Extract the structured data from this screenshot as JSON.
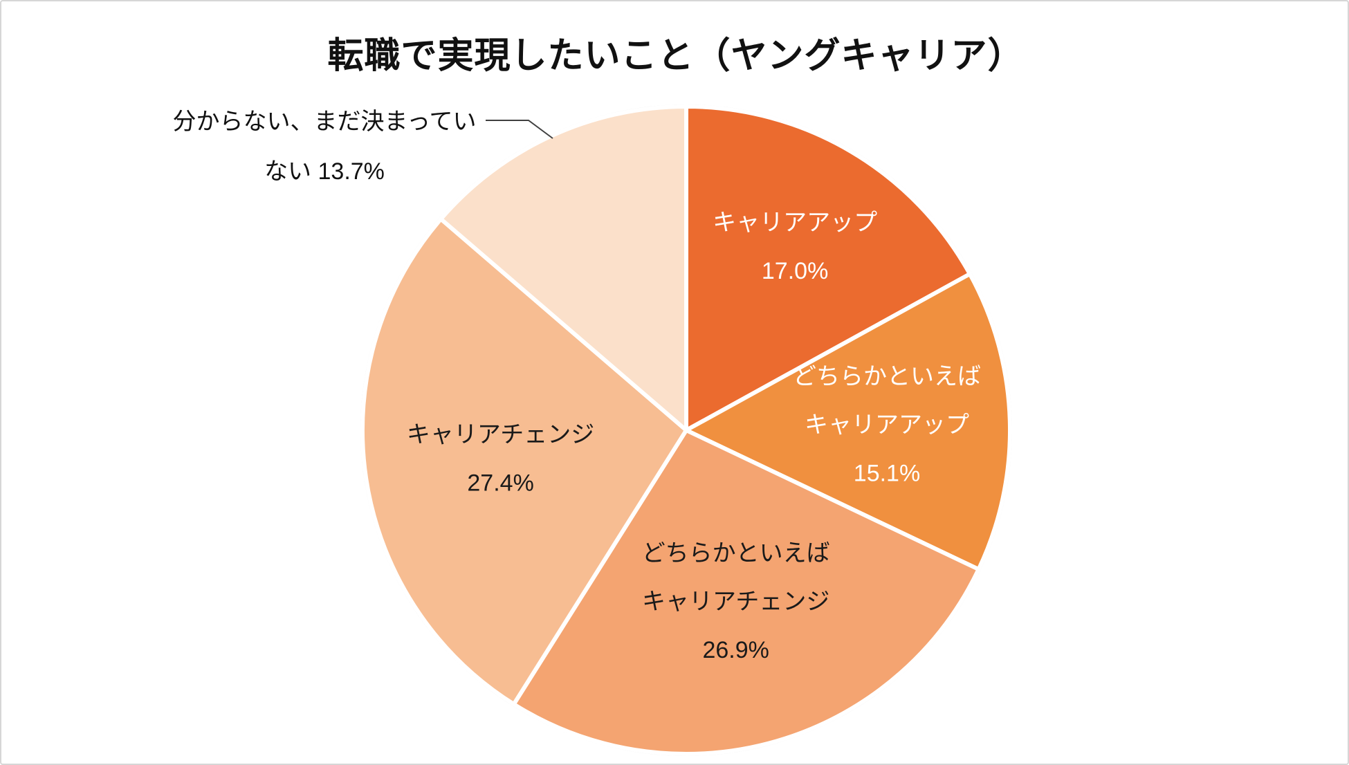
{
  "chart": {
    "title": "転職で実現したいこと（ヤングキャリア）"
  },
  "chart_data": {
    "type": "pie",
    "title": "転職で実現したいこと（ヤングキャリア）",
    "start_angle_deg": 0,
    "direction": "clockwise",
    "legend": "none",
    "total_percent": 100.1,
    "slices": [
      {
        "label": "キャリアアップ",
        "value": 17.0,
        "percent_text": "17.0%",
        "color": "#EB6B2F",
        "text_color": "#FFFFFF",
        "label_lines": [
          "キャリアアップ",
          "17.0%"
        ],
        "label_radius": 0.66,
        "outside": false
      },
      {
        "label": "どちらかといえばキャリアアップ",
        "value": 15.1,
        "percent_text": "15.1%",
        "color": "#F0903F",
        "text_color": "#FFFFFF",
        "label_lines": [
          "どちらかといえば",
          "キャリアアップ",
          "15.1%"
        ],
        "label_radius": 0.62,
        "outside": false
      },
      {
        "label": "どちらかといえばキャリアチェンジ",
        "value": 26.9,
        "percent_text": "26.9%",
        "color": "#F4A471",
        "text_color": "#1A1A1A",
        "label_lines": [
          "どちらかといえば",
          "キャリアチェンジ",
          "26.9%"
        ],
        "label_radius": 0.55,
        "outside": false
      },
      {
        "label": "キャリアチェンジ",
        "value": 27.4,
        "percent_text": "27.4%",
        "color": "#F7BD92",
        "text_color": "#1A1A1A",
        "label_lines": [
          "キャリアチェンジ",
          "27.4%"
        ],
        "label_radius": 0.58,
        "outside": false
      },
      {
        "label": "分からない、まだ決まっていない",
        "value": 13.7,
        "percent_text": "13.7%",
        "color": "#FBE0CA",
        "text_color": "#1A1A1A",
        "label_lines": [
          "分からない、まだ決まってい",
          "ない 13.7%"
        ],
        "label_radius": 0.0,
        "outside": true
      }
    ],
    "colors": {
      "separator": "#FFFFFF",
      "leader_line": "#404040",
      "frame_border": "#D6D6D6"
    }
  }
}
